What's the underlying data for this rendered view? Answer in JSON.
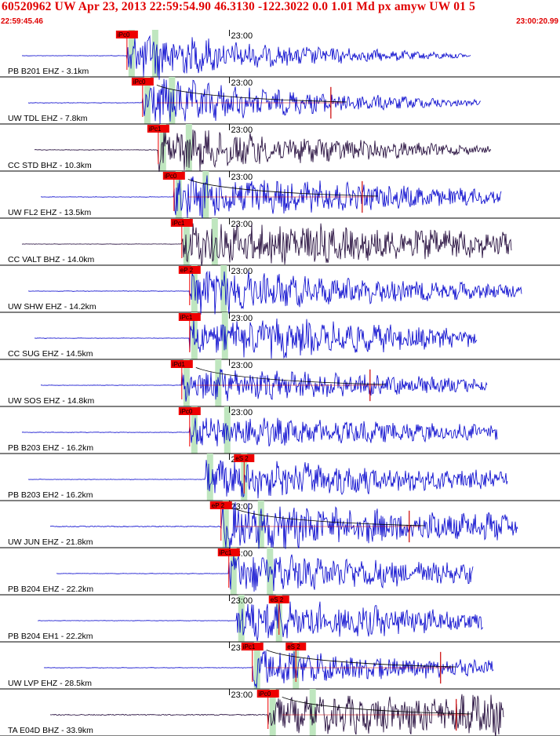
{
  "header": {
    "event_line": "60520962 UW Apr 23, 2013 22:59:54.90   46.3130 -122.3022  0.0 1.01 Md px amyw UW 01   5",
    "start_time": "22:59:45.46",
    "end_time": "23:00:20.99"
  },
  "colors": {
    "header_text": "#e00000",
    "trace_blue": "#0000cc",
    "trace_dark": "#1a0033",
    "pick_box": "#ee0000",
    "pick_window": "#bfe6bf",
    "coda": "#cc0000"
  },
  "chart_data": {
    "type": "line",
    "title": "60520962 UW Apr 23, 2013 22:59:54.90   46.3130 -122.3022  0.0 1.01 Md px amyw UW 01   5",
    "x_axis": {
      "start": "22:59:45.46",
      "end": "23:00:20.99",
      "minute_mark": "23:00"
    },
    "traces": [
      {
        "label": "PB B201 EHZ - 3.1km",
        "color": "blue",
        "pick": "iPc0",
        "pick2": "",
        "onset": 22.0,
        "env": [
          0.3,
          1.0,
          0.5,
          0.08
        ],
        "coda": false
      },
      {
        "label": "UW TDL EHZ - 7.8km",
        "color": "blue",
        "pick": "iPc0",
        "pick2": "",
        "onset": 23.0,
        "env": [
          0.35,
          1.0,
          0.55,
          0.12
        ],
        "coda": true
      },
      {
        "label": "CC STD BHZ - 10.3km",
        "color": "dark",
        "pick": "iPc1",
        "pick2": "",
        "onset": 24.0,
        "env": [
          0.4,
          0.9,
          0.6,
          0.15
        ],
        "coda": false
      },
      {
        "label": "UW FL2 EHZ - 13.5km",
        "color": "blue",
        "pick": "iPc0",
        "pick2": "",
        "onset": 25.0,
        "env": [
          0.3,
          0.9,
          0.7,
          0.3
        ],
        "coda": true
      },
      {
        "label": "CC VALT BHZ - 14.0km",
        "color": "dark",
        "pick": "iPc1",
        "pick2": "",
        "onset": 25.5,
        "env": [
          0.25,
          0.9,
          0.85,
          0.5
        ],
        "coda": false
      },
      {
        "label": "UW SHW EHZ - 14.2km",
        "color": "blue",
        "pick": "eP 2",
        "pick2": "",
        "onset": 26.0,
        "env": [
          0.3,
          1.0,
          0.6,
          0.3
        ],
        "coda": false
      },
      {
        "label": "CC SUG EHZ - 14.5km",
        "color": "blue",
        "pick": "iPc1",
        "pick2": "",
        "onset": 26.0,
        "env": [
          0.3,
          0.8,
          0.8,
          0.35
        ],
        "coda": false
      },
      {
        "label": "UW SOS EHZ - 14.8km",
        "color": "blue",
        "pick": "iPd1",
        "pick2": "",
        "onset": 25.5,
        "env": [
          0.3,
          0.7,
          0.6,
          0.25
        ],
        "coda": true
      },
      {
        "label": "PB B203 EHZ - 16.2km",
        "color": "blue",
        "pick": "iPc0",
        "pick2": "",
        "onset": 26.0,
        "env": [
          0.35,
          0.7,
          0.55,
          0.3
        ],
        "coda": false
      },
      {
        "label": "PB B203 EH2 - 16.2km",
        "color": "blue",
        "pick": "",
        "pick2": "eS 2",
        "onset": 27.0,
        "env": [
          0.3,
          0.8,
          0.7,
          0.35
        ],
        "coda": false
      },
      {
        "label": "UW JUN EHZ - 21.8km",
        "color": "blue",
        "pick": "eP 2",
        "pick2": "",
        "onset": 28.0,
        "env": [
          0.6,
          1.0,
          0.8,
          0.55
        ],
        "coda": true
      },
      {
        "label": "PB B204 EHZ - 22.2km",
        "color": "blue",
        "pick": "iPc1",
        "pick2": "",
        "onset": 28.5,
        "env": [
          0.3,
          0.9,
          0.7,
          0.4
        ],
        "coda": false
      },
      {
        "label": "PB B204 EH1 - 22.2km",
        "color": "blue",
        "pick": "",
        "pick2": "eS 2",
        "onset": 29.0,
        "env": [
          0.3,
          0.9,
          0.75,
          0.4
        ],
        "coda": false
      },
      {
        "label": "UW LVP EHZ - 28.5km",
        "color": "blue",
        "pick": "iPc1",
        "pick2": "eS 2",
        "onset": 30.0,
        "env": [
          0.3,
          0.8,
          0.6,
          0.3
        ],
        "coda": true
      },
      {
        "label": "TA E04D BHZ - 33.9km",
        "color": "dark",
        "pick": "iPc0",
        "pick2": "",
        "onset": 31.0,
        "env": [
          0.7,
          0.7,
          0.8,
          0.9
        ],
        "coda": true
      }
    ]
  }
}
